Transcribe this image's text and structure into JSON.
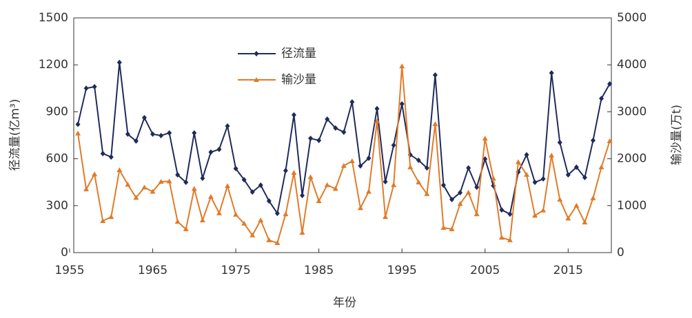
{
  "chart_data": {
    "type": "line",
    "x_label": "年份",
    "y_label": "径流量(亿m³)",
    "y2_label": "输沙量(万t)",
    "x": [
      1956,
      1957,
      1958,
      1959,
      1960,
      1961,
      1962,
      1963,
      1964,
      1965,
      1966,
      1967,
      1968,
      1969,
      1970,
      1971,
      1972,
      1973,
      1974,
      1975,
      1976,
      1977,
      1978,
      1979,
      1980,
      1981,
      1982,
      1983,
      1984,
      1985,
      1986,
      1987,
      1988,
      1989,
      1990,
      1991,
      1992,
      1993,
      1994,
      1995,
      1996,
      1997,
      1998,
      1999,
      2000,
      2001,
      2002,
      2003,
      2004,
      2005,
      2006,
      2007,
      2008,
      2009,
      2010,
      2011,
      2012,
      2013,
      2014,
      2015,
      2016,
      2017,
      2018,
      2019,
      2020
    ],
    "series": [
      {
        "name": "径流量",
        "color": "#1f2a5c",
        "marker": "diamond",
        "values": [
          820,
          1050,
          1060,
          633,
          611,
          1215,
          757,
          713,
          862,
          757,
          748,
          765,
          497,
          449,
          765,
          475,
          642,
          660,
          809,
          537,
          466,
          387,
          431,
          330,
          251,
          524,
          880,
          365,
          730,
          717,
          853,
          796,
          770,
          963,
          554,
          603,
          920,
          453,
          686,
          950,
          625,
          590,
          541,
          1135,
          431,
          339,
          383,
          541,
          418,
          598,
          427,
          273,
          246,
          515,
          625,
          449,
          471,
          1148,
          704,
          497,
          546,
          480,
          717,
          985,
          1078
        ]
      },
      {
        "name": "输沙量",
        "color": "#e07b28",
        "marker": "triangle",
        "axis": "y2",
        "values": [
          2540,
          1350,
          1670,
          675,
          760,
          1760,
          1450,
          1170,
          1390,
          1300,
          1510,
          1520,
          660,
          500,
          1360,
          690,
          1190,
          840,
          1420,
          810,
          620,
          370,
          690,
          265,
          205,
          820,
          1700,
          425,
          1610,
          1100,
          1440,
          1360,
          1850,
          1950,
          950,
          1300,
          2800,
          760,
          1440,
          3970,
          1820,
          1500,
          1250,
          2740,
          530,
          500,
          1040,
          1280,
          820,
          2430,
          1580,
          320,
          265,
          1930,
          1660,
          790,
          900,
          2070,
          1130,
          730,
          1000,
          645,
          1160,
          1820,
          2375
        ]
      }
    ],
    "xlim": [
      1955.5,
      2020.2
    ],
    "xticks": [
      1955,
      1965,
      1975,
      1985,
      1995,
      2005,
      2015
    ],
    "ylim": [
      0,
      1500
    ],
    "yticks": [
      0,
      300,
      600,
      900,
      1200,
      1500
    ],
    "y2lim": [
      0,
      5000
    ],
    "y2ticks": [
      0,
      1000,
      2000,
      3000,
      4000,
      5000
    ],
    "grid": false,
    "legend": "upper center"
  }
}
